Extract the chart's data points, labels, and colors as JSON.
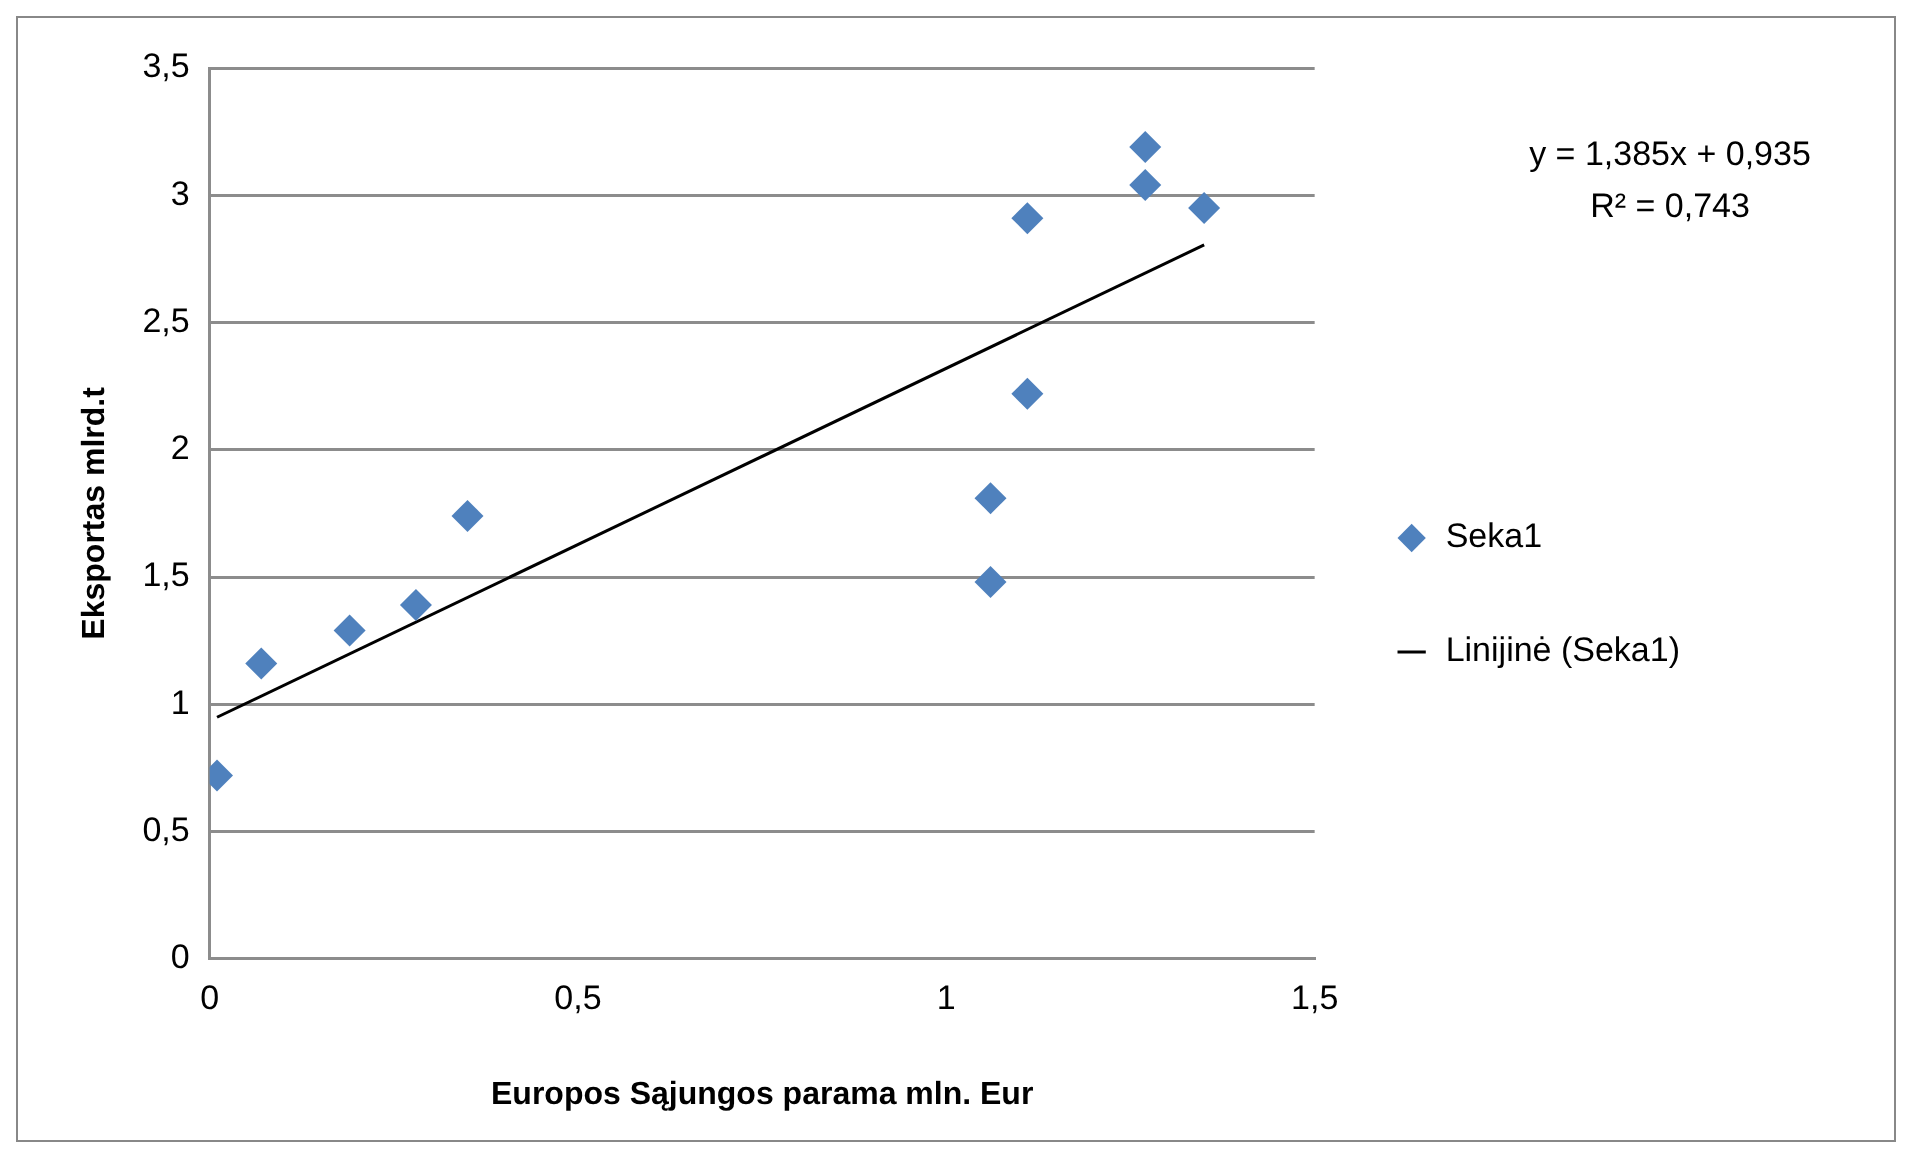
{
  "chart_data": {
    "type": "scatter",
    "xlabel": "Europos Sąjungos parama mln. Eur",
    "ylabel": "Eksportas mlrd.t",
    "xlim": [
      0,
      1.5
    ],
    "xticks": [
      0,
      {
        "value": 0.5,
        "label": "0,5"
      },
      1,
      {
        "value": 1.5,
        "label": "1,5"
      }
    ],
    "ylim": [
      0,
      3.5
    ],
    "yticks": [
      0,
      {
        "value": 0.5,
        "label": "0,5"
      },
      1,
      {
        "value": 1.5,
        "label": "1,5"
      },
      2,
      {
        "value": 2.5,
        "label": "2,5"
      },
      3,
      {
        "value": 3.5,
        "label": "3,5"
      }
    ],
    "grid": "y",
    "legend": "right",
    "marker": "diamond",
    "annotations": [
      "y = 1,385x + 0,935",
      "R² = 0,743"
    ],
    "series": [
      {
        "name": "Seka1",
        "color": "#4f81bd",
        "x": [
          0.01,
          0.07,
          0.19,
          0.28,
          0.35,
          1.06,
          1.06,
          1.11,
          1.11,
          1.27,
          1.27,
          1.35
        ],
        "values": [
          0.72,
          1.16,
          1.29,
          1.39,
          1.74,
          1.48,
          1.81,
          2.22,
          2.91,
          3.04,
          3.19,
          2.95
        ]
      },
      {
        "name": "Linijinė (Seka1)",
        "type": "line",
        "color": "#000000",
        "marker": "none",
        "x": [
          0.01,
          1.35
        ],
        "values": [
          0.949,
          2.805
        ]
      }
    ]
  }
}
